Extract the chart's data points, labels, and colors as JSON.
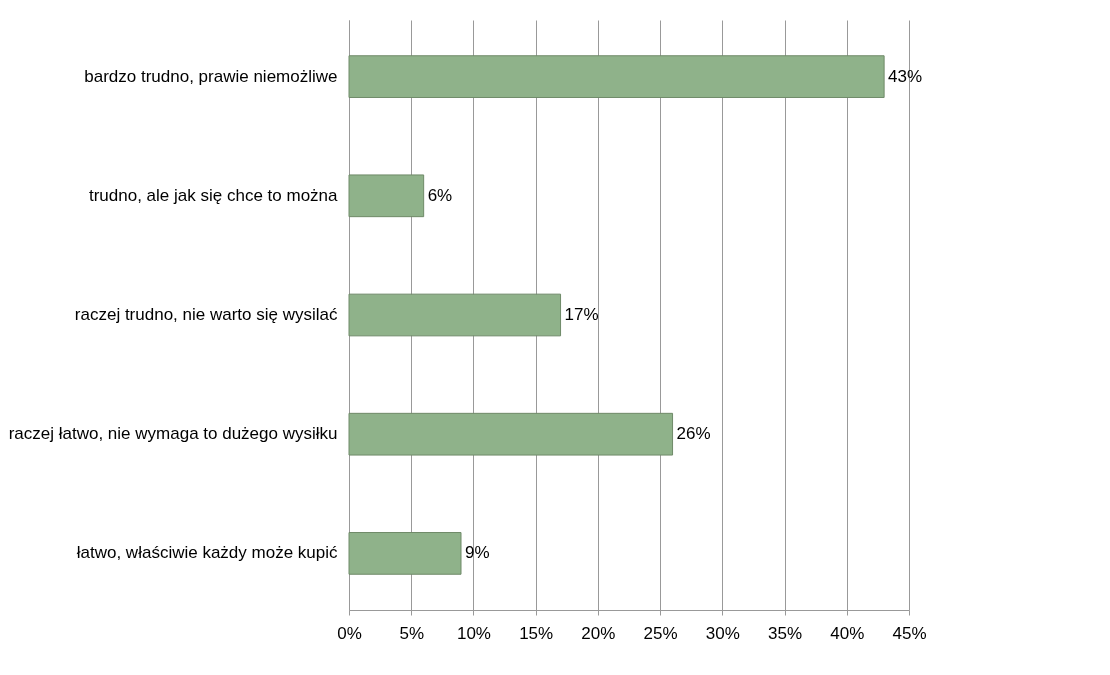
{
  "chart_data": {
    "type": "bar",
    "orientation": "horizontal",
    "categories": [
      "bardzo trudno, prawie niemożliwe",
      "trudno, ale jak się chce to można",
      "raczej trudno, nie warto się wysilać",
      "raczej łatwo, nie wymaga to dużego wysiłku",
      "łatwo, właściwie każdy może kupić"
    ],
    "values": [
      43,
      6,
      17,
      26,
      9
    ],
    "value_labels": [
      "43%",
      "6%",
      "17%",
      "26%",
      "9%"
    ],
    "color": "#8fb28a",
    "xlim": [
      0,
      45
    ],
    "xticks": [
      {
        "value": 0,
        "label": "0%"
      },
      {
        "value": 5,
        "label": "5%"
      },
      {
        "value": 10,
        "label": "10%"
      },
      {
        "value": 15,
        "label": "15%"
      },
      {
        "value": 20,
        "label": "20%"
      },
      {
        "value": 25,
        "label": "25%"
      },
      {
        "value": 30,
        "label": "30%"
      },
      {
        "value": 35,
        "label": "35%"
      },
      {
        "value": 40,
        "label": "40%"
      },
      {
        "value": 45,
        "label": "45%"
      }
    ],
    "grid": "x"
  }
}
